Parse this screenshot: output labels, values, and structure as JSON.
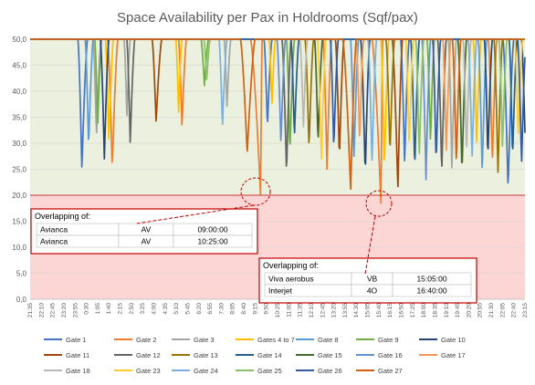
{
  "chart_data": {
    "type": "line",
    "title": "Space Availability per Pax in Holdrooms (Sqf/pax)",
    "xlabel": "",
    "ylabel": "",
    "ylim": [
      0,
      50
    ],
    "yticks": [
      "0,0",
      "5,0",
      "10,0",
      "15,0",
      "20,0",
      "25,0",
      "30,0",
      "35,0",
      "40,0",
      "45,0",
      "50,0"
    ],
    "x_labels": [
      "21:35",
      "22:10",
      "22:45",
      "23:20",
      "23:55",
      "0:30",
      "1:05",
      "1:40",
      "2:15",
      "2:50",
      "3:25",
      "4:00",
      "4:35",
      "5:10",
      "5:45",
      "6:20",
      "6:55",
      "7:30",
      "8:05",
      "8:40",
      "9:15",
      "9:50",
      "10:25",
      "11:00",
      "11:35",
      "12:10",
      "12:45",
      "13:20",
      "13:55",
      "14:30",
      "15:05",
      "15:40",
      "16:15",
      "16:50",
      "17:25",
      "18:00",
      "18:35",
      "19:10",
      "19:45",
      "20:20",
      "20:55",
      "21:30",
      "22:05",
      "22:40",
      "23:15"
    ],
    "threshold": 20,
    "zones": {
      "upper_color": "#ebf1de",
      "lower_color": "#fcd5d5"
    },
    "grid": true,
    "legend_position": "bottom",
    "series": [
      {
        "name": "Gate 1",
        "color": "#4472c4"
      },
      {
        "name": "Gate 2",
        "color": "#ed7d31"
      },
      {
        "name": "Gate 3",
        "color": "#a5a5a5"
      },
      {
        "name": "Gates 4 to 7",
        "color": "#ffc000"
      },
      {
        "name": "Gate 8",
        "color": "#5b9bd5"
      },
      {
        "name": "Gate 9",
        "color": "#70ad47"
      },
      {
        "name": "Gate 10",
        "color": "#264478"
      },
      {
        "name": "Gate 11",
        "color": "#9e480e"
      },
      {
        "name": "Gate 12",
        "color": "#636363"
      },
      {
        "name": "Gate 13",
        "color": "#997300"
      },
      {
        "name": "Gate 14",
        "color": "#255e91"
      },
      {
        "name": "Gate 15",
        "color": "#43682b"
      },
      {
        "name": "Gate 16",
        "color": "#698ed0"
      },
      {
        "name": "Gate 17",
        "color": "#f1975a"
      },
      {
        "name": "Gate 18",
        "color": "#b7b7b7"
      },
      {
        "name": "Gate 23",
        "color": "#ffcd33"
      },
      {
        "name": "Gate 24",
        "color": "#7cafdd"
      },
      {
        "name": "Gate 25",
        "color": "#8cc168"
      },
      {
        "name": "Gate 26",
        "color": "#335aa1"
      },
      {
        "name": "Gate 27",
        "color": "#d26012"
      }
    ],
    "dips": [
      {
        "s": 0,
        "x": 4.6,
        "y": 25,
        "w": 0.35,
        "r": 0.5
      },
      {
        "s": 4,
        "x": 5.2,
        "y": 29,
        "w": 0.3,
        "r": 0.4
      },
      {
        "s": 2,
        "x": 5.9,
        "y": 31,
        "w": 0.3,
        "r": 0.4
      },
      {
        "s": 6,
        "x": 6.6,
        "y": 27,
        "w": 0.35,
        "r": 0.4
      },
      {
        "s": 1,
        "x": 7.3,
        "y": 25,
        "w": 0.4,
        "r": 0.5
      },
      {
        "s": 5,
        "x": 6.0,
        "y": 33,
        "w": 0.25,
        "r": 0.35
      },
      {
        "s": 3,
        "x": 7.0,
        "y": 30,
        "w": 0.3,
        "r": 0.4
      },
      {
        "s": 2,
        "x": 8.6,
        "y": 35,
        "w": 0.25,
        "r": 0.3
      },
      {
        "s": 8,
        "x": 8.9,
        "y": 30,
        "w": 0.3,
        "r": 0.4
      },
      {
        "s": 7,
        "x": 11.2,
        "y": 34,
        "w": 0.35,
        "r": 0.5
      },
      {
        "s": 3,
        "x": 13.2,
        "y": 36,
        "w": 0.25,
        "r": 0.3
      },
      {
        "s": 1,
        "x": 13.5,
        "y": 33,
        "w": 0.3,
        "r": 0.4
      },
      {
        "s": 5,
        "x": 15.5,
        "y": 41,
        "w": 0.3,
        "r": 0.35
      },
      {
        "s": 17,
        "x": 15.7,
        "y": 42,
        "w": 0.25,
        "r": 0.3
      },
      {
        "s": 16,
        "x": 17.1,
        "y": 33,
        "w": 0.3,
        "r": 0.4
      },
      {
        "s": 2,
        "x": 17.5,
        "y": 37,
        "w": 0.25,
        "r": 0.35
      },
      {
        "s": 19,
        "x": 19.3,
        "y": 28,
        "w": 0.6,
        "r": 0.7
      },
      {
        "s": 1,
        "x": 20.5,
        "y": 19.5,
        "w": 0.9,
        "r": 0.12
      },
      {
        "s": 0,
        "x": 21.1,
        "y": 33,
        "w": 0.3,
        "r": 0.4
      },
      {
        "s": 3,
        "x": 21.5,
        "y": 37,
        "w": 0.25,
        "r": 0.3
      },
      {
        "s": 12,
        "x": 22.3,
        "y": 30,
        "w": 0.35,
        "r": 0.4
      },
      {
        "s": 8,
        "x": 22.8,
        "y": 24,
        "w": 0.4,
        "r": 0.4
      },
      {
        "s": 5,
        "x": 23.1,
        "y": 28,
        "w": 0.3,
        "r": 0.4
      },
      {
        "s": 10,
        "x": 23.5,
        "y": 31,
        "w": 0.3,
        "r": 0.4
      },
      {
        "s": 14,
        "x": 24.3,
        "y": 33,
        "w": 0.3,
        "r": 0.35
      },
      {
        "s": 9,
        "x": 24.8,
        "y": 29,
        "w": 0.35,
        "r": 0.4
      },
      {
        "s": 11,
        "x": 25.6,
        "y": 30,
        "w": 0.3,
        "r": 0.4
      },
      {
        "s": 15,
        "x": 25.9,
        "y": 26,
        "w": 0.35,
        "r": 0.4
      },
      {
        "s": 1,
        "x": 26.4,
        "y": 25,
        "w": 0.35,
        "r": 0.4
      },
      {
        "s": 18,
        "x": 27.0,
        "y": 29,
        "w": 0.3,
        "r": 0.4
      },
      {
        "s": 7,
        "x": 27.5,
        "y": 27,
        "w": 0.35,
        "r": 0.4
      },
      {
        "s": 19,
        "x": 28.5,
        "y": 21,
        "w": 0.7,
        "r": 0.5
      },
      {
        "s": 4,
        "x": 28.8,
        "y": 27,
        "w": 0.3,
        "r": 0.4
      },
      {
        "s": 13,
        "x": 29.3,
        "y": 30,
        "w": 0.3,
        "r": 0.35
      },
      {
        "s": 6,
        "x": 29.8,
        "y": 24,
        "w": 0.4,
        "r": 0.4
      },
      {
        "s": 16,
        "x": 30.4,
        "y": 26,
        "w": 0.35,
        "r": 0.4
      },
      {
        "s": 1,
        "x": 31.2,
        "y": 18,
        "w": 0.8,
        "r": 0.15
      },
      {
        "s": 3,
        "x": 31.5,
        "y": 25,
        "w": 0.3,
        "r": 0.4
      },
      {
        "s": 9,
        "x": 32.0,
        "y": 28,
        "w": 0.35,
        "r": 0.4
      },
      {
        "s": 7,
        "x": 32.7,
        "y": 21,
        "w": 0.5,
        "r": 0.4
      },
      {
        "s": 0,
        "x": 33.3,
        "y": 26,
        "w": 0.35,
        "r": 0.4
      },
      {
        "s": 15,
        "x": 33.7,
        "y": 29,
        "w": 0.3,
        "r": 0.4
      },
      {
        "s": 10,
        "x": 34.2,
        "y": 25,
        "w": 0.35,
        "r": 0.4
      },
      {
        "s": 17,
        "x": 34.6,
        "y": 27,
        "w": 0.3,
        "r": 0.4
      },
      {
        "s": 12,
        "x": 35.2,
        "y": 23,
        "w": 0.35,
        "r": 0.4
      },
      {
        "s": 5,
        "x": 35.6,
        "y": 30,
        "w": 0.3,
        "r": 0.35
      },
      {
        "s": 18,
        "x": 36.1,
        "y": 26,
        "w": 0.3,
        "r": 0.4
      },
      {
        "s": 8,
        "x": 36.6,
        "y": 24,
        "w": 0.35,
        "r": 0.4
      },
      {
        "s": 13,
        "x": 37.0,
        "y": 28,
        "w": 0.3,
        "r": 0.4
      },
      {
        "s": 2,
        "x": 37.5,
        "y": 25,
        "w": 0.3,
        "r": 0.4
      },
      {
        "s": 19,
        "x": 37.9,
        "y": 26,
        "w": 0.35,
        "r": 0.4
      },
      {
        "s": 11,
        "x": 38.4,
        "y": 24,
        "w": 0.35,
        "r": 0.4
      },
      {
        "s": 14,
        "x": 38.8,
        "y": 28,
        "w": 0.3,
        "r": 0.4
      },
      {
        "s": 16,
        "x": 39.3,
        "y": 27,
        "w": 0.35,
        "r": 0.4
      },
      {
        "s": 3,
        "x": 39.7,
        "y": 30,
        "w": 0.3,
        "r": 0.4
      },
      {
        "s": 4,
        "x": 40.2,
        "y": 24,
        "w": 0.35,
        "r": 0.4
      },
      {
        "s": 6,
        "x": 40.7,
        "y": 27,
        "w": 0.3,
        "r": 0.4
      },
      {
        "s": 1,
        "x": 41.1,
        "y": 26,
        "w": 0.35,
        "r": 0.4
      },
      {
        "s": 9,
        "x": 41.6,
        "y": 24,
        "w": 0.35,
        "r": 0.4
      },
      {
        "s": 17,
        "x": 42.0,
        "y": 29,
        "w": 0.3,
        "r": 0.4
      },
      {
        "s": 0,
        "x": 42.5,
        "y": 21,
        "w": 0.45,
        "r": 0.5
      },
      {
        "s": 10,
        "x": 42.9,
        "y": 27,
        "w": 0.3,
        "r": 0.4
      },
      {
        "s": 15,
        "x": 43.4,
        "y": 31,
        "w": 0.3,
        "r": 0.4
      },
      {
        "s": 18,
        "x": 43.7,
        "y": 26,
        "w": 0.35,
        "r": 0.4
      },
      {
        "s": 6,
        "x": 44.0,
        "y": 32,
        "w": 0.3,
        "r": 0.3
      }
    ],
    "annotations": [
      {
        "title": "Overlapping of:",
        "rows": [
          [
            "Avianca",
            "AV",
            "09:00:00"
          ],
          [
            "Avianca",
            "AV",
            "10:25:00"
          ]
        ]
      },
      {
        "title": "Overlapping of:",
        "rows": [
          [
            "Viva aerobus",
            "VB",
            "15:05:00"
          ],
          [
            "Interjet",
            "4O",
            "16:40:00"
          ]
        ]
      }
    ]
  }
}
